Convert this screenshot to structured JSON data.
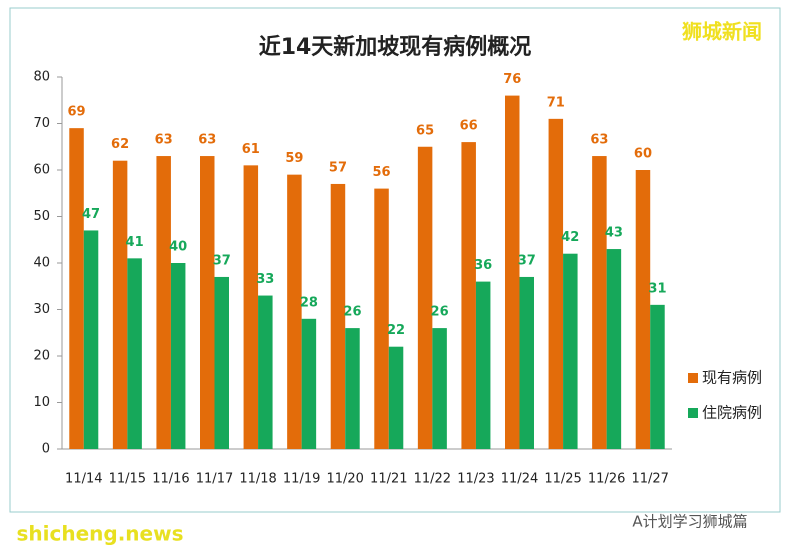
{
  "chart_data": {
    "type": "bar",
    "title": "近14天新加坡现有病例概况",
    "categories": [
      "11/14",
      "11/15",
      "11/16",
      "11/17",
      "11/18",
      "11/19",
      "11/20",
      "11/21",
      "11/22",
      "11/23",
      "11/24",
      "11/25",
      "11/26",
      "11/27"
    ],
    "series": [
      {
        "name": "现有病例",
        "color": "#e36c0a",
        "values": [
          69,
          62,
          63,
          63,
          61,
          59,
          57,
          56,
          65,
          66,
          76,
          71,
          63,
          60
        ]
      },
      {
        "name": "住院病例",
        "color": "#16a85a",
        "values": [
          47,
          41,
          40,
          37,
          33,
          28,
          26,
          22,
          26,
          36,
          37,
          42,
          43,
          31
        ]
      }
    ],
    "ylim": [
      0,
      80
    ],
    "yticks": [
      0,
      10,
      20,
      30,
      40,
      50,
      60,
      70,
      80
    ],
    "grid": false,
    "legend": "right",
    "annotations": [
      "狮城新闻",
      "shicheng.news",
      "A计划学习狮城篇"
    ]
  }
}
